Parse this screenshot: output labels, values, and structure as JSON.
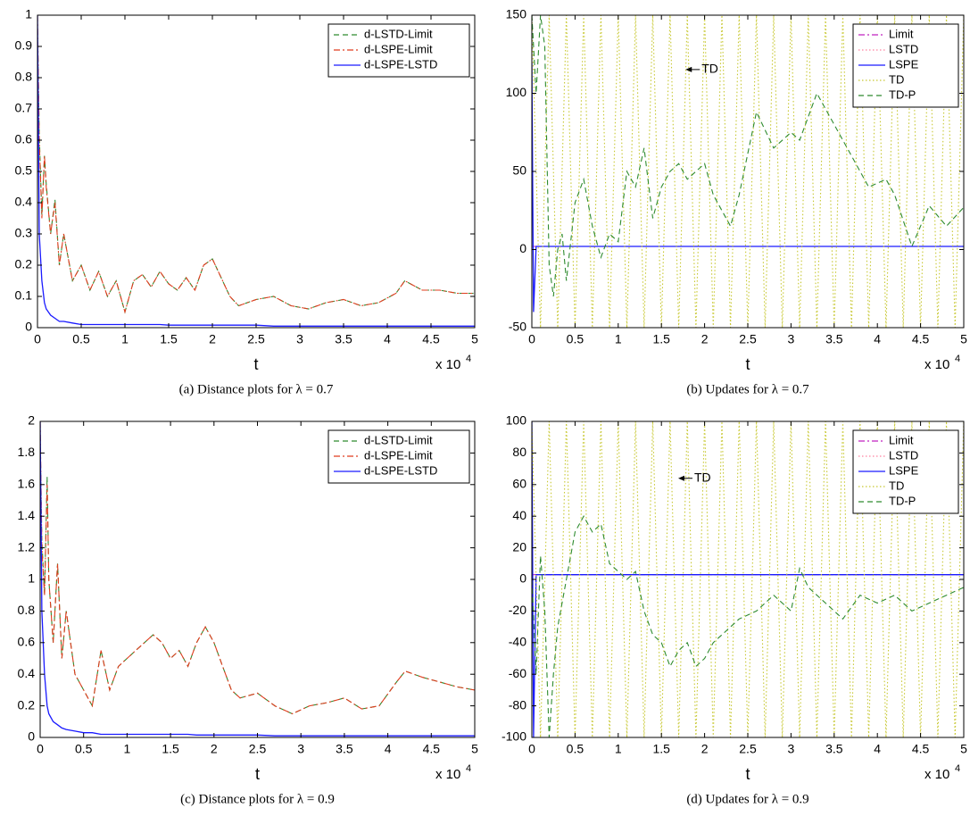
{
  "chart_data": [
    {
      "type": "line",
      "caption": "(a) Distance plots for λ = 0.7",
      "xlabel": "t",
      "x_scale_label": "x 10",
      "x_scale_exponent": "4",
      "xlim": [
        0,
        5
      ],
      "xticks": [
        0,
        0.5,
        1,
        1.5,
        2,
        2.5,
        3,
        3.5,
        4,
        4.5,
        5
      ],
      "ylim": [
        0,
        1
      ],
      "yticks": [
        0,
        0.1,
        0.2,
        0.3,
        0.4,
        0.5,
        0.6,
        0.7,
        0.8,
        0.9,
        1
      ],
      "legend": "upper right",
      "x": [
        0,
        0.02,
        0.05,
        0.08,
        0.1,
        0.15,
        0.2,
        0.25,
        0.3,
        0.4,
        0.5,
        0.6,
        0.7,
        0.8,
        0.9,
        1.0,
        1.1,
        1.2,
        1.3,
        1.4,
        1.5,
        1.6,
        1.7,
        1.8,
        1.9,
        2.0,
        2.1,
        2.2,
        2.3,
        2.5,
        2.7,
        2.9,
        3.1,
        3.3,
        3.5,
        3.7,
        3.9,
        4.1,
        4.2,
        4.4,
        4.6,
        4.8,
        5.0
      ],
      "series": [
        {
          "name": "d-LSTD-Limit",
          "color": "#2e8b2e",
          "style": "dashed",
          "values": [
            0.95,
            0.62,
            0.36,
            0.55,
            0.46,
            0.3,
            0.41,
            0.2,
            0.3,
            0.15,
            0.2,
            0.12,
            0.18,
            0.1,
            0.15,
            0.05,
            0.15,
            0.17,
            0.13,
            0.18,
            0.14,
            0.12,
            0.16,
            0.12,
            0.2,
            0.22,
            0.16,
            0.1,
            0.07,
            0.09,
            0.1,
            0.07,
            0.06,
            0.08,
            0.09,
            0.07,
            0.08,
            0.11,
            0.15,
            0.12,
            0.12,
            0.11,
            0.11
          ]
        },
        {
          "name": "d-LSPE-Limit",
          "color": "#e03c1e",
          "style": "dashdot",
          "values": [
            1,
            0.6,
            0.35,
            0.55,
            0.45,
            0.3,
            0.4,
            0.2,
            0.3,
            0.15,
            0.2,
            0.12,
            0.18,
            0.1,
            0.15,
            0.05,
            0.15,
            0.17,
            0.13,
            0.18,
            0.14,
            0.12,
            0.16,
            0.12,
            0.2,
            0.22,
            0.16,
            0.1,
            0.07,
            0.09,
            0.1,
            0.07,
            0.06,
            0.08,
            0.09,
            0.07,
            0.08,
            0.11,
            0.15,
            0.12,
            0.12,
            0.11,
            0.11
          ]
        },
        {
          "name": "d-LSPE-LSTD",
          "color": "#1a1aff",
          "style": "solid",
          "values": [
            1,
            0.3,
            0.15,
            0.08,
            0.06,
            0.04,
            0.03,
            0.02,
            0.02,
            0.015,
            0.01,
            0.01,
            0.01,
            0.01,
            0.01,
            0.01,
            0.01,
            0.01,
            0.01,
            0.01,
            0.008,
            0.008,
            0.008,
            0.008,
            0.008,
            0.008,
            0.008,
            0.008,
            0.008,
            0.008,
            0.005,
            0.005,
            0.005,
            0.005,
            0.005,
            0.005,
            0.005,
            0.005,
            0.005,
            0.005,
            0.005,
            0.005,
            0.005
          ]
        }
      ]
    },
    {
      "type": "line",
      "caption": "(b) Updates for λ = 0.7",
      "xlabel": "t",
      "x_scale_label": "x 10",
      "x_scale_exponent": "4",
      "annotation": "TD",
      "xlim": [
        0,
        5
      ],
      "xticks": [
        0,
        0.5,
        1,
        1.5,
        2,
        2.5,
        3,
        3.5,
        4,
        4.5,
        5
      ],
      "ylim": [
        -50,
        150
      ],
      "yticks": [
        -50,
        0,
        50,
        100,
        150
      ],
      "legend": "upper right",
      "series": [
        {
          "name": "Limit",
          "color": "#c020c0",
          "style": "dashdot",
          "x": [
            0,
            5
          ],
          "values": [
            2,
            2
          ]
        },
        {
          "name": "LSTD",
          "color": "#ff80a0",
          "style": "dotted",
          "x": [
            0,
            5
          ],
          "values": [
            2,
            2
          ]
        },
        {
          "name": "LSPE",
          "color": "#1a1aff",
          "style": "solid",
          "x": [
            0,
            0.02,
            0.05,
            5
          ],
          "values": [
            120,
            -40,
            2,
            2
          ]
        },
        {
          "name": "TD",
          "color": "#c8c832",
          "style": "dotted",
          "x": [
            0,
            0.1,
            0.2,
            0.3,
            0.4,
            0.5,
            0.6,
            0.7,
            0.8,
            0.9,
            1.0,
            1.1,
            1.2,
            1.3,
            1.4,
            1.5,
            1.6,
            1.7,
            1.8,
            1.9,
            2.0,
            2.1,
            2.2,
            2.3,
            2.4,
            2.5,
            2.6,
            2.7,
            2.8,
            2.9,
            3.0,
            3.1,
            3.2,
            3.3,
            3.4,
            3.5,
            3.6,
            3.7,
            3.8,
            3.9,
            4.0,
            4.1,
            4.2,
            4.3,
            4.4,
            4.5,
            4.6,
            4.7,
            4.8,
            4.9,
            5.0
          ],
          "values": [
            150,
            -50,
            150,
            -50,
            150,
            -50,
            150,
            -50,
            150,
            -50,
            150,
            -50,
            150,
            -50,
            150,
            -50,
            150,
            -50,
            150,
            -50,
            150,
            -50,
            150,
            -50,
            150,
            -50,
            150,
            -50,
            150,
            -50,
            150,
            -50,
            150,
            -50,
            150,
            -50,
            150,
            -50,
            150,
            -50,
            150,
            -50,
            150,
            -50,
            150,
            -50,
            150,
            -50,
            150,
            -50,
            150
          ]
        },
        {
          "name": "TD-P",
          "color": "#2e8b2e",
          "style": "dashed",
          "x": [
            0,
            0.05,
            0.1,
            0.15,
            0.2,
            0.25,
            0.3,
            0.35,
            0.4,
            0.5,
            0.6,
            0.7,
            0.8,
            0.9,
            1.0,
            1.1,
            1.2,
            1.3,
            1.4,
            1.5,
            1.6,
            1.7,
            1.8,
            1.9,
            2.0,
            2.1,
            2.3,
            2.4,
            2.6,
            2.8,
            3.0,
            3.1,
            3.3,
            3.5,
            3.7,
            3.9,
            4.1,
            4.2,
            4.4,
            4.6,
            4.8,
            5.0
          ],
          "values": [
            150,
            100,
            150,
            130,
            -10,
            -30,
            0,
            10,
            -20,
            30,
            45,
            15,
            -5,
            10,
            5,
            50,
            40,
            65,
            20,
            40,
            50,
            55,
            45,
            50,
            55,
            35,
            15,
            35,
            88,
            65,
            75,
            70,
            100,
            80,
            60,
            40,
            45,
            35,
            2,
            28,
            15,
            27
          ]
        }
      ]
    },
    {
      "type": "line",
      "caption": "(c) Distance plots for λ = 0.9",
      "xlabel": "t",
      "x_scale_label": "x 10",
      "x_scale_exponent": "4",
      "xlim": [
        0,
        5
      ],
      "xticks": [
        0,
        0.5,
        1,
        1.5,
        2,
        2.5,
        3,
        3.5,
        4,
        4.5,
        5
      ],
      "ylim": [
        0,
        2
      ],
      "yticks": [
        0,
        0.2,
        0.4,
        0.6,
        0.8,
        1,
        1.2,
        1.4,
        1.6,
        1.8,
        2
      ],
      "legend": "upper right",
      "x": [
        0,
        0.02,
        0.05,
        0.08,
        0.1,
        0.15,
        0.2,
        0.25,
        0.3,
        0.4,
        0.5,
        0.6,
        0.7,
        0.8,
        0.9,
        1.0,
        1.1,
        1.2,
        1.3,
        1.4,
        1.5,
        1.6,
        1.7,
        1.8,
        1.9,
        2.0,
        2.1,
        2.2,
        2.3,
        2.5,
        2.7,
        2.9,
        3.1,
        3.3,
        3.5,
        3.7,
        3.9,
        4.1,
        4.2,
        4.4,
        4.6,
        4.8,
        5.0
      ],
      "series": [
        {
          "name": "d-LSTD-Limit",
          "color": "#2e8b2e",
          "style": "dashed",
          "values": [
            1.9,
            1.25,
            0.9,
            1.65,
            1.0,
            0.6,
            1.1,
            0.5,
            0.8,
            0.4,
            0.3,
            0.2,
            0.55,
            0.3,
            0.45,
            0.5,
            0.55,
            0.6,
            0.65,
            0.6,
            0.5,
            0.55,
            0.45,
            0.6,
            0.7,
            0.6,
            0.45,
            0.3,
            0.25,
            0.28,
            0.2,
            0.15,
            0.2,
            0.22,
            0.25,
            0.18,
            0.2,
            0.35,
            0.42,
            0.38,
            0.35,
            0.32,
            0.3
          ]
        },
        {
          "name": "d-LSPE-Limit",
          "color": "#e03c1e",
          "style": "dashdot",
          "values": [
            2,
            1.2,
            0.9,
            1.6,
            1.0,
            0.6,
            1.1,
            0.5,
            0.8,
            0.4,
            0.3,
            0.2,
            0.55,
            0.3,
            0.45,
            0.5,
            0.55,
            0.6,
            0.65,
            0.6,
            0.5,
            0.55,
            0.45,
            0.6,
            0.7,
            0.6,
            0.45,
            0.3,
            0.25,
            0.28,
            0.2,
            0.15,
            0.2,
            0.22,
            0.25,
            0.18,
            0.2,
            0.35,
            0.42,
            0.38,
            0.35,
            0.32,
            0.3
          ]
        },
        {
          "name": "d-LSPE-LSTD",
          "color": "#1a1aff",
          "style": "solid",
          "values": [
            2,
            0.8,
            0.4,
            0.2,
            0.15,
            0.1,
            0.08,
            0.06,
            0.05,
            0.04,
            0.03,
            0.03,
            0.02,
            0.02,
            0.02,
            0.02,
            0.02,
            0.02,
            0.02,
            0.02,
            0.02,
            0.02,
            0.02,
            0.015,
            0.015,
            0.015,
            0.015,
            0.015,
            0.015,
            0.015,
            0.01,
            0.01,
            0.01,
            0.01,
            0.01,
            0.01,
            0.01,
            0.01,
            0.01,
            0.01,
            0.01,
            0.01,
            0.01
          ]
        }
      ]
    },
    {
      "type": "line",
      "caption": "(d) Updates for λ = 0.9",
      "xlabel": "t",
      "x_scale_label": "x 10",
      "x_scale_exponent": "4",
      "annotation": "TD",
      "xlim": [
        0,
        5
      ],
      "xticks": [
        0,
        0.5,
        1,
        1.5,
        2,
        2.5,
        3,
        3.5,
        4,
        4.5,
        5
      ],
      "ylim": [
        -100,
        100
      ],
      "yticks": [
        -100,
        -80,
        -60,
        -40,
        -20,
        0,
        20,
        40,
        60,
        80,
        100
      ],
      "legend": "upper right",
      "series": [
        {
          "name": "Limit",
          "color": "#c020c0",
          "style": "dashdot",
          "x": [
            0,
            5
          ],
          "values": [
            3,
            3
          ]
        },
        {
          "name": "LSTD",
          "color": "#ff80a0",
          "style": "dotted",
          "x": [
            0,
            5
          ],
          "values": [
            3,
            3
          ]
        },
        {
          "name": "LSPE",
          "color": "#1a1aff",
          "style": "solid",
          "x": [
            0,
            0.02,
            0.05,
            5
          ],
          "values": [
            100,
            -100,
            3,
            3
          ]
        },
        {
          "name": "TD",
          "color": "#c8c832",
          "style": "dotted",
          "x": [
            0,
            0.1,
            0.2,
            0.3,
            0.4,
            0.5,
            0.6,
            0.7,
            0.8,
            0.9,
            1.0,
            1.1,
            1.2,
            1.3,
            1.4,
            1.5,
            1.6,
            1.7,
            1.8,
            1.9,
            2.0,
            2.1,
            2.2,
            2.3,
            2.4,
            2.5,
            2.6,
            2.7,
            2.8,
            2.9,
            3.0,
            3.1,
            3.2,
            3.3,
            3.4,
            3.5,
            3.6,
            3.7,
            3.8,
            3.9,
            4.0,
            4.1,
            4.2,
            4.3,
            4.4,
            4.5,
            4.6,
            4.7,
            4.8,
            4.9,
            5.0
          ],
          "values": [
            100,
            -100,
            100,
            -100,
            100,
            -100,
            100,
            -100,
            100,
            -100,
            100,
            -100,
            100,
            -100,
            100,
            -100,
            100,
            -100,
            100,
            -100,
            100,
            -100,
            100,
            -100,
            100,
            -100,
            100,
            -100,
            100,
            -100,
            100,
            -100,
            100,
            -100,
            100,
            -100,
            100,
            -100,
            100,
            -100,
            100,
            -100,
            100,
            -100,
            100,
            -100,
            100,
            -100,
            100,
            -100,
            100
          ]
        },
        {
          "name": "TD-P",
          "color": "#2e8b2e",
          "style": "dashed",
          "x": [
            0,
            0.05,
            0.1,
            0.15,
            0.2,
            0.25,
            0.3,
            0.4,
            0.5,
            0.6,
            0.7,
            0.8,
            0.9,
            1.0,
            1.1,
            1.2,
            1.3,
            1.4,
            1.5,
            1.6,
            1.7,
            1.8,
            1.9,
            2.0,
            2.1,
            2.2,
            2.4,
            2.6,
            2.8,
            3.0,
            3.1,
            3.2,
            3.4,
            3.6,
            3.8,
            4.0,
            4.2,
            4.4,
            4.6,
            4.8,
            5.0
          ],
          "values": [
            0,
            -60,
            15,
            -20,
            -100,
            -60,
            -30,
            0,
            30,
            40,
            30,
            35,
            10,
            5,
            0,
            5,
            -20,
            -35,
            -40,
            -55,
            -45,
            -40,
            -55,
            -50,
            -40,
            -35,
            -25,
            -20,
            -10,
            -20,
            7,
            -5,
            -15,
            -25,
            -10,
            -15,
            -10,
            -20,
            -15,
            -10,
            -5
          ]
        }
      ]
    }
  ]
}
